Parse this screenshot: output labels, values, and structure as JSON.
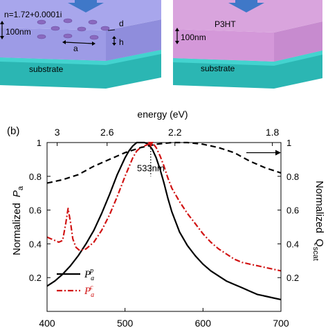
{
  "schematic": {
    "left_panel": {
      "film_label": "n=1.72+0.0001i",
      "thickness_label": "100nm",
      "period_label": "a",
      "diameter_label": "d",
      "height_label": "h",
      "substrate_label": "substrate"
    },
    "right_panel": {
      "film_label": "P3HT",
      "thickness_label": "100nm",
      "substrate_label": "substrate"
    },
    "colors": {
      "film_left_top": "#a8a6ec",
      "film_left_side": "#8f8ddc",
      "film_right_top": "#d9a4dd",
      "film_right_side": "#c78bcf",
      "substrate_top": "#43d3cf",
      "substrate_side": "#2bb6b3",
      "arrow": "#3f78c8",
      "hole": "#8a69bf"
    }
  },
  "panel_label": "(b)",
  "chart_data": {
    "type": "line",
    "xlabel": "",
    "top_xlabel": "energy (eV)",
    "ylabel_left": "Normalized  P_a",
    "ylabel_right": "Normalized  Q_scat",
    "xlim": [
      400,
      700
    ],
    "ylim": [
      0,
      1
    ],
    "x_ticks": [
      400,
      500,
      600,
      700
    ],
    "y_ticks_left": [
      0,
      0.2,
      0.4,
      0.6,
      0.8,
      1
    ],
    "y_ticks_right": [
      0,
      0.2,
      0.4,
      0.6,
      0.8,
      1
    ],
    "top_ticks": [
      {
        "label": "3",
        "wavelength": 413
      },
      {
        "label": "2.6",
        "wavelength": 477
      },
      {
        "label": "2.2",
        "wavelength": 564
      },
      {
        "label": "1.8",
        "wavelength": 689
      }
    ],
    "annotation": {
      "text": "533nm",
      "x": 533
    },
    "series": [
      {
        "name": "P_a^p",
        "color": "#000000",
        "dash": "solid",
        "x": [
          400,
          410,
          420,
          430,
          440,
          450,
          460,
          470,
          480,
          490,
          500,
          505,
          510,
          515,
          520,
          525,
          530,
          535,
          540,
          545,
          550,
          555,
          560,
          570,
          580,
          590,
          600,
          610,
          620,
          630,
          640,
          650,
          660,
          670,
          680,
          690,
          700
        ],
        "y": [
          0.15,
          0.18,
          0.22,
          0.27,
          0.33,
          0.4,
          0.48,
          0.58,
          0.69,
          0.81,
          0.91,
          0.95,
          0.98,
          1.0,
          1.0,
          1.0,
          0.99,
          0.96,
          0.91,
          0.84,
          0.76,
          0.67,
          0.59,
          0.47,
          0.39,
          0.33,
          0.28,
          0.24,
          0.21,
          0.18,
          0.16,
          0.14,
          0.12,
          0.1,
          0.09,
          0.08,
          0.07
        ]
      },
      {
        "name": "P_a^c",
        "color": "#d11414",
        "dash": "dashdot",
        "x": [
          400,
          405,
          410,
          415,
          420,
          424,
          427,
          430,
          433,
          437,
          442,
          450,
          460,
          470,
          480,
          490,
          500,
          510,
          515,
          520,
          525,
          530,
          535,
          540,
          545,
          550,
          555,
          560,
          570,
          580,
          590,
          600,
          610,
          620,
          630,
          640,
          650,
          660,
          670,
          680,
          690,
          700
        ],
        "y": [
          0.44,
          0.43,
          0.42,
          0.41,
          0.42,
          0.52,
          0.61,
          0.53,
          0.43,
          0.38,
          0.36,
          0.37,
          0.41,
          0.48,
          0.57,
          0.68,
          0.8,
          0.91,
          0.95,
          0.97,
          0.98,
          0.99,
          1.0,
          0.97,
          0.92,
          0.86,
          0.79,
          0.73,
          0.65,
          0.58,
          0.52,
          0.46,
          0.41,
          0.37,
          0.34,
          0.31,
          0.29,
          0.28,
          0.27,
          0.26,
          0.25,
          0.24
        ]
      },
      {
        "name": "Q_scat",
        "color": "#000000",
        "dash": "dashed",
        "axis": "right",
        "x": [
          400,
          420,
          440,
          460,
          480,
          500,
          520,
          540,
          560,
          580,
          600,
          620,
          640,
          660,
          680,
          700
        ],
        "y": [
          0.76,
          0.78,
          0.81,
          0.86,
          0.9,
          0.94,
          0.97,
          0.99,
          1.0,
          1.0,
          0.99,
          0.97,
          0.94,
          0.89,
          0.85,
          0.82
        ]
      }
    ],
    "legend": {
      "placement": "bottom-left",
      "entries": [
        {
          "base": "P",
          "sub": "a",
          "sup": "p",
          "color": "#000000",
          "dash": "solid"
        },
        {
          "base": "P",
          "sub": "a",
          "sup": "c",
          "color": "#d11414",
          "dash": "dashdot"
        }
      ]
    }
  }
}
